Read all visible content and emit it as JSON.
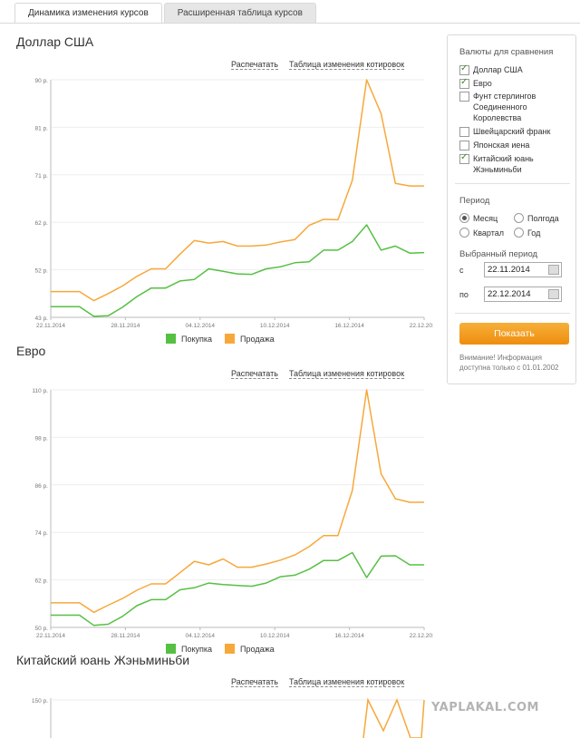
{
  "tabs": [
    "Динамика изменения курсов",
    "Расширенная таблица курсов"
  ],
  "links": {
    "print": "Распечатать",
    "table": "Таблица изменения котировок"
  },
  "legend": {
    "buy": "Покупка",
    "sell": "Продажа"
  },
  "colors": {
    "buy": "#56c043",
    "sell": "#f7a83a",
    "button": "#f39c12"
  },
  "panel": {
    "currencies_title": "Валюты для сравнения",
    "currencies": [
      {
        "label": "Доллар США",
        "checked": true
      },
      {
        "label": "Евро",
        "checked": true
      },
      {
        "label": "Фунт стерлингов Соединенного Королевства",
        "checked": false
      },
      {
        "label": "Швейцарский франк",
        "checked": false
      },
      {
        "label": "Японская иена",
        "checked": false
      },
      {
        "label": "Китайский юань Жэньминьби",
        "checked": true
      }
    ],
    "period_title": "Период",
    "periods": [
      {
        "label": "Месяц",
        "checked": true
      },
      {
        "label": "Полгода",
        "checked": false
      },
      {
        "label": "Квартал",
        "checked": false
      },
      {
        "label": "Год",
        "checked": false
      }
    ],
    "selected_period_title": "Выбранный период",
    "from_label": "с",
    "from_value": "22.11.2014",
    "to_label": "по",
    "to_value": "22.12.2014",
    "show_button": "Показать",
    "note": "Внимание! Информация доступна только с 01.01.2002"
  },
  "watermark": "YAPLAKAL.COM",
  "chart_data": [
    {
      "type": "line",
      "title": "Доллар США",
      "x_ticks": [
        "22.11.2014",
        "28.11.2014",
        "04.12.2014",
        "10.12.2014",
        "16.12.2014",
        "22.12.2014"
      ],
      "y_ticks": [
        "43 р.",
        "52 р.",
        "62 р.",
        "71 р.",
        "81 р.",
        "90 р."
      ],
      "ylim": [
        43,
        90
      ],
      "series": [
        {
          "name": "Покупка",
          "values": [
            45.1,
            45.1,
            45.1,
            43.2,
            43.3,
            45.0,
            47.1,
            48.8,
            48.8,
            50.2,
            50.5,
            52.6,
            52.1,
            51.6,
            51.5,
            52.6,
            53.0,
            53.8,
            54.0,
            56.3,
            56.3,
            58.0,
            61.3,
            56.3,
            57.1,
            55.7,
            55.8
          ]
        },
        {
          "name": "Продажа",
          "values": [
            48.1,
            48.1,
            48.1,
            46.3,
            47.7,
            49.2,
            51.1,
            52.6,
            52.6,
            55.5,
            58.2,
            57.7,
            58.0,
            57.1,
            57.1,
            57.3,
            57.9,
            58.4,
            61.2,
            62.4,
            62.3,
            70.1,
            90.0,
            83.3,
            69.5,
            69.0,
            69.0
          ]
        }
      ]
    },
    {
      "type": "line",
      "title": "Евро",
      "x_ticks": [
        "22.11.2014",
        "28.11.2014",
        "04.12.2014",
        "10.12.2014",
        "16.12.2014",
        "22.12.2014"
      ],
      "y_ticks": [
        "50 р.",
        "62 р.",
        "74 р.",
        "86 р.",
        "98 р.",
        "110 р."
      ],
      "ylim": [
        50,
        110
      ],
      "series": [
        {
          "name": "Покупка",
          "values": [
            53.1,
            53.1,
            53.1,
            50.5,
            50.8,
            52.8,
            55.5,
            57.0,
            57.0,
            59.5,
            60.0,
            61.2,
            60.8,
            60.6,
            60.4,
            61.2,
            62.8,
            63.2,
            64.7,
            66.9,
            66.9,
            68.9,
            62.6,
            68.0,
            68.1,
            65.8,
            65.8
          ]
        },
        {
          "name": "Продажа",
          "values": [
            56.2,
            56.2,
            56.2,
            53.8,
            55.6,
            57.3,
            59.4,
            61.0,
            61.0,
            63.8,
            66.7,
            65.8,
            67.3,
            65.2,
            65.2,
            66.0,
            67.0,
            68.3,
            70.4,
            73.2,
            73.2,
            84.6,
            110.0,
            88.8,
            82.5,
            81.6,
            81.6
          ]
        }
      ]
    },
    {
      "type": "line",
      "title": "Китайский юань Жэньминьби",
      "y_ticks": [
        "150 р."
      ],
      "series": [
        {
          "name": "Продажа",
          "values": []
        }
      ]
    }
  ]
}
